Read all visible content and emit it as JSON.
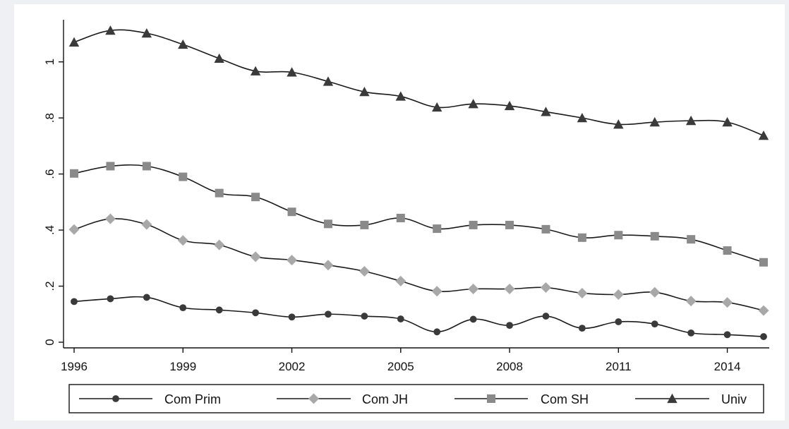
{
  "chart_data": {
    "type": "line",
    "x": [
      1996,
      1997,
      1998,
      1999,
      2000,
      2001,
      2002,
      2003,
      2004,
      2005,
      2006,
      2007,
      2008,
      2009,
      2010,
      2011,
      2012,
      2013,
      2014,
      2015
    ],
    "xticks": [
      1996,
      1999,
      2002,
      2005,
      2008,
      2011,
      2014
    ],
    "xtick_labels": [
      "1996",
      "1999",
      "2002",
      "2005",
      "2008",
      "2011",
      "2014"
    ],
    "yticks": [
      0,
      0.2,
      0.4,
      0.6,
      0.8,
      1.0
    ],
    "ytick_labels": [
      "0",
      ".2",
      ".4",
      ".6",
      ".8",
      "1"
    ],
    "xlim": [
      1996,
      2015
    ],
    "ylim": [
      0,
      1.12
    ],
    "grid": false,
    "legend_position": "bottom",
    "series": [
      {
        "name": "Com Prim",
        "marker": "circle",
        "color": "#3a3a3a",
        "values": [
          0.145,
          0.155,
          0.16,
          0.123,
          0.115,
          0.105,
          0.09,
          0.1,
          0.093,
          0.083,
          0.037,
          0.082,
          0.06,
          0.093,
          0.05,
          0.073,
          0.065,
          0.033,
          0.027,
          0.02
        ]
      },
      {
        "name": "Com JH",
        "marker": "diamond",
        "color": "#a8a8a8",
        "values": [
          0.402,
          0.44,
          0.42,
          0.363,
          0.347,
          0.305,
          0.293,
          0.275,
          0.253,
          0.218,
          0.182,
          0.19,
          0.19,
          0.195,
          0.175,
          0.17,
          0.178,
          0.147,
          0.142,
          0.113
        ]
      },
      {
        "name": "Com SH",
        "marker": "square",
        "color": "#8a8a8a",
        "values": [
          0.602,
          0.628,
          0.628,
          0.59,
          0.532,
          0.518,
          0.465,
          0.422,
          0.418,
          0.443,
          0.405,
          0.418,
          0.418,
          0.403,
          0.373,
          0.382,
          0.378,
          0.367,
          0.327,
          0.285
        ]
      },
      {
        "name": "Univ",
        "marker": "triangle",
        "color": "#3a3a3a",
        "values": [
          1.07,
          1.112,
          1.102,
          1.062,
          1.012,
          0.967,
          0.963,
          0.93,
          0.893,
          0.877,
          0.838,
          0.85,
          0.843,
          0.822,
          0.8,
          0.777,
          0.785,
          0.79,
          0.785,
          0.737
        ]
      }
    ]
  }
}
